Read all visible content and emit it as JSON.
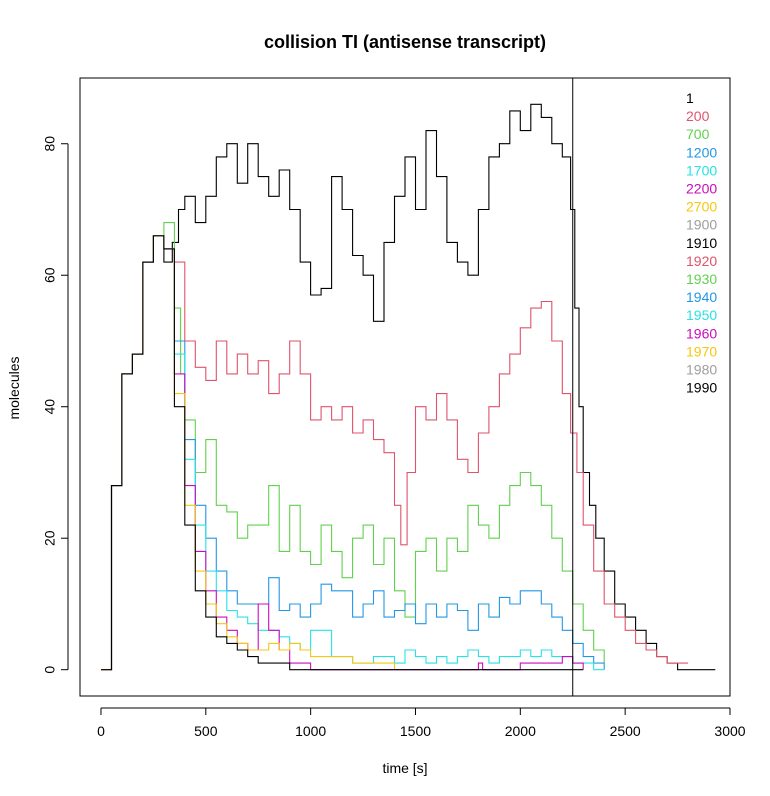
{
  "chart_data": {
    "type": "line",
    "title": "collision TI (antisense transcript)",
    "xlabel": "time [s]",
    "ylabel": "molecules",
    "xlim": [
      -100,
      3000
    ],
    "ylim": [
      -4,
      90
    ],
    "x_ticks": [
      0,
      500,
      1000,
      1500,
      2000,
      2500,
      3000
    ],
    "y_ticks": [
      0,
      20,
      40,
      60,
      80
    ],
    "vline_x": 2250,
    "legend_position": "top-right",
    "legend": [
      {
        "label": "1",
        "color": "#000000"
      },
      {
        "label": "200",
        "color": "#DF536B"
      },
      {
        "label": "700",
        "color": "#61D04F"
      },
      {
        "label": "1200",
        "color": "#2297E6"
      },
      {
        "label": "1700",
        "color": "#28E2E5"
      },
      {
        "label": "2200",
        "color": "#CD0BBC"
      },
      {
        "label": "2700",
        "color": "#F5C710"
      },
      {
        "label": "1900",
        "color": "#9E9E9E"
      },
      {
        "label": "1910",
        "color": "#000000"
      },
      {
        "label": "1920",
        "color": "#DF536B"
      },
      {
        "label": "1930",
        "color": "#61D04F"
      },
      {
        "label": "1940",
        "color": "#2297E6"
      },
      {
        "label": "1950",
        "color": "#28E2E5"
      },
      {
        "label": "1960",
        "color": "#CD0BBC"
      },
      {
        "label": "1970",
        "color": "#F5C710"
      },
      {
        "label": "1980",
        "color": "#9E9E9E"
      },
      {
        "label": "1990",
        "color": "#000000"
      }
    ],
    "series": [
      {
        "color": "#000000",
        "x": [
          0,
          50,
          100,
          150,
          200,
          250,
          300,
          340,
          370,
          400,
          450,
          500,
          550,
          600,
          650,
          700,
          750,
          800,
          850,
          900,
          950,
          1000,
          1050,
          1100,
          1150,
          1200,
          1250,
          1300,
          1350,
          1400,
          1450,
          1500,
          1550,
          1600,
          1650,
          1700,
          1750,
          1800,
          1850,
          1900,
          1950,
          2000,
          2050,
          2100,
          2150,
          2200,
          2240,
          2260,
          2280,
          2300,
          2330,
          2360,
          2400,
          2450,
          2500,
          2550,
          2600,
          2650,
          2700,
          2750,
          2800,
          2850,
          2900,
          2930
        ],
        "y": [
          0,
          28,
          45,
          48,
          62,
          66,
          62,
          65,
          70,
          72,
          68,
          72,
          78,
          80,
          74,
          80,
          75,
          72,
          76,
          70,
          62,
          57,
          58,
          75,
          70,
          63,
          60,
          53,
          65,
          72,
          78,
          70,
          82,
          75,
          65,
          62,
          60,
          70,
          78,
          80,
          85,
          82,
          86,
          84,
          80,
          78,
          70,
          55,
          40,
          30,
          25,
          20,
          15,
          10,
          8,
          6,
          4,
          2,
          1,
          0,
          0,
          0,
          0,
          0
        ]
      },
      {
        "color": "#DF536B",
        "x": [
          0,
          50,
          100,
          150,
          200,
          250,
          300,
          350,
          400,
          450,
          500,
          550,
          600,
          650,
          700,
          750,
          800,
          850,
          900,
          950,
          1000,
          1050,
          1100,
          1150,
          1200,
          1250,
          1300,
          1350,
          1400,
          1430,
          1460,
          1500,
          1550,
          1600,
          1650,
          1700,
          1750,
          1800,
          1850,
          1900,
          1950,
          2000,
          2050,
          2100,
          2150,
          2200,
          2240,
          2270,
          2300,
          2350,
          2400,
          2450,
          2500,
          2550,
          2600,
          2650,
          2700,
          2750,
          2800
        ],
        "y": [
          0,
          28,
          45,
          48,
          62,
          66,
          64,
          62,
          50,
          46,
          44,
          50,
          45,
          48,
          45,
          47,
          42,
          45,
          50,
          45,
          38,
          40,
          38,
          40,
          36,
          38,
          35,
          33,
          25,
          19,
          30,
          40,
          38,
          42,
          38,
          32,
          30,
          36,
          40,
          45,
          48,
          52,
          55,
          56,
          50,
          42,
          36,
          30,
          22,
          15,
          10,
          8,
          6,
          4,
          3,
          2,
          1,
          1,
          1
        ]
      },
      {
        "color": "#61D04F",
        "x": [
          0,
          50,
          100,
          150,
          200,
          250,
          300,
          350,
          380,
          400,
          450,
          500,
          550,
          600,
          650,
          700,
          750,
          800,
          850,
          900,
          950,
          1000,
          1050,
          1100,
          1150,
          1200,
          1250,
          1300,
          1350,
          1400,
          1450,
          1500,
          1550,
          1600,
          1650,
          1700,
          1750,
          1800,
          1850,
          1900,
          1950,
          2000,
          2050,
          2100,
          2150,
          2200,
          2250,
          2300,
          2350,
          2400
        ],
        "y": [
          0,
          28,
          45,
          48,
          62,
          66,
          68,
          55,
          45,
          38,
          30,
          35,
          25,
          24,
          20,
          22,
          22,
          28,
          18,
          25,
          18,
          16,
          22,
          18,
          14,
          20,
          22,
          16,
          20,
          12,
          8,
          18,
          20,
          15,
          20,
          18,
          25,
          22,
          20,
          25,
          28,
          30,
          28,
          25,
          20,
          15,
          10,
          6,
          3,
          1
        ]
      },
      {
        "color": "#2297E6",
        "x": [
          0,
          50,
          100,
          150,
          200,
          250,
          300,
          350,
          400,
          450,
          500,
          550,
          600,
          650,
          700,
          750,
          800,
          850,
          900,
          950,
          1000,
          1050,
          1100,
          1150,
          1200,
          1250,
          1300,
          1350,
          1400,
          1450,
          1500,
          1550,
          1600,
          1650,
          1700,
          1750,
          1800,
          1850,
          1900,
          1950,
          2000,
          2050,
          2100,
          2150,
          2200,
          2250,
          2300,
          2350,
          2400
        ],
        "y": [
          0,
          28,
          45,
          48,
          62,
          66,
          64,
          50,
          35,
          25,
          20,
          15,
          12,
          10,
          10,
          10,
          14,
          9,
          10,
          8,
          10,
          13,
          12,
          12,
          8,
          10,
          12,
          8,
          9,
          10,
          7,
          10,
          8,
          10,
          9,
          6,
          10,
          8,
          11,
          10,
          12,
          12,
          10,
          8,
          6,
          4,
          2,
          1,
          0
        ]
      },
      {
        "color": "#28E2E5",
        "x": [
          0,
          50,
          100,
          150,
          200,
          250,
          300,
          350,
          400,
          450,
          500,
          550,
          600,
          650,
          700,
          750,
          800,
          850,
          900,
          950,
          1000,
          1100,
          1200,
          1300,
          1400,
          1450,
          1500,
          1550,
          1600,
          1650,
          1700,
          1750,
          1800,
          1850,
          1900,
          1950,
          2000,
          2050,
          2100,
          2150,
          2200,
          2250,
          2300,
          2350,
          2400
        ],
        "y": [
          0,
          28,
          45,
          48,
          62,
          66,
          64,
          48,
          32,
          22,
          15,
          12,
          9,
          8,
          7,
          6,
          6,
          5,
          4,
          3,
          6,
          2,
          1,
          2,
          1,
          3,
          2,
          1,
          2,
          1,
          2,
          3,
          2,
          1,
          2,
          2,
          3,
          2,
          3,
          2,
          2,
          1,
          1,
          0,
          0
        ]
      },
      {
        "color": "#CD0BBC",
        "x": [
          0,
          50,
          100,
          150,
          200,
          250,
          300,
          350,
          400,
          450,
          500,
          550,
          600,
          650,
          700,
          750,
          800,
          850,
          900,
          1000,
          1100,
          1200,
          1400,
          1600,
          1780,
          1800,
          1820,
          1900,
          2000,
          2100,
          2200,
          2250,
          2300
        ],
        "y": [
          0,
          28,
          45,
          48,
          62,
          66,
          64,
          45,
          28,
          18,
          12,
          8,
          6,
          4,
          3,
          10,
          6,
          3,
          1,
          0,
          0,
          0,
          0,
          0,
          0,
          1,
          0,
          0,
          1,
          1,
          2,
          1,
          0
        ]
      },
      {
        "color": "#F5C710",
        "x": [
          0,
          50,
          100,
          150,
          200,
          250,
          300,
          350,
          400,
          450,
          500,
          550,
          600,
          650,
          700,
          750,
          800,
          850,
          900,
          950,
          1000,
          1100,
          1200,
          1300,
          1400
        ],
        "y": [
          0,
          28,
          45,
          48,
          62,
          66,
          64,
          42,
          25,
          15,
          10,
          7,
          5,
          4,
          3,
          3,
          4,
          3,
          4,
          3,
          2,
          2,
          1,
          1,
          0
        ]
      },
      {
        "color": "#000000",
        "x": [
          0,
          50,
          100,
          150,
          200,
          250,
          300,
          350,
          400,
          450,
          500,
          550,
          600,
          650,
          700,
          750,
          800,
          850,
          900,
          950,
          1000,
          1100,
          1200,
          1300,
          1400,
          1500,
          1600,
          1700,
          1800,
          1900,
          2000,
          2100,
          2200,
          2300
        ],
        "y": [
          0,
          28,
          45,
          48,
          62,
          66,
          64,
          40,
          22,
          12,
          8,
          5,
          4,
          3,
          2,
          1,
          1,
          1,
          0,
          0,
          0,
          0,
          0,
          0,
          0,
          0,
          0,
          0,
          0,
          0,
          0,
          0,
          0,
          0
        ]
      }
    ]
  }
}
